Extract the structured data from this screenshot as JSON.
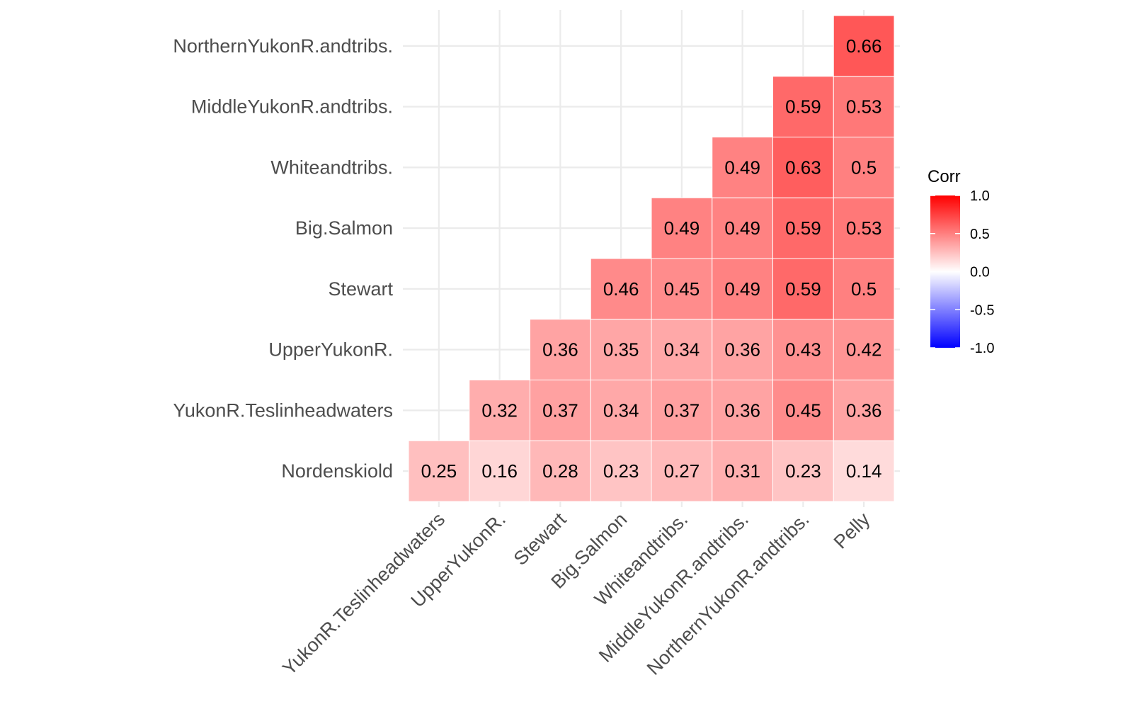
{
  "chart_data": {
    "type": "heatmap",
    "title": "",
    "xlabel": "",
    "ylabel": "",
    "x_categories": [
      "YukonR.Teslinheadwaters",
      "UpperYukonR.",
      "Stewart",
      "Big.Salmon",
      "Whiteandtribs.",
      "MiddleYukonR.andtribs.",
      "NorthernYukonR.andtribs.",
      "Pelly"
    ],
    "y_categories": [
      "Nordenskiold",
      "YukonR.Teslinheadwaters",
      "UpperYukonR.",
      "Stewart",
      "Big.Salmon",
      "Whiteandtribs.",
      "MiddleYukonR.andtribs.",
      "NorthernYukonR.andtribs."
    ],
    "matrix": [
      [
        0.25,
        0.16,
        0.28,
        0.23,
        0.27,
        0.31,
        0.23,
        0.14
      ],
      [
        null,
        0.32,
        0.37,
        0.34,
        0.37,
        0.36,
        0.45,
        0.36
      ],
      [
        null,
        null,
        0.36,
        0.35,
        0.34,
        0.36,
        0.43,
        0.42
      ],
      [
        null,
        null,
        null,
        0.46,
        0.45,
        0.49,
        0.59,
        0.5
      ],
      [
        null,
        null,
        null,
        null,
        0.49,
        0.49,
        0.59,
        0.53
      ],
      [
        null,
        null,
        null,
        null,
        null,
        0.49,
        0.63,
        0.5
      ],
      [
        null,
        null,
        null,
        null,
        null,
        null,
        0.59,
        0.53
      ],
      [
        null,
        null,
        null,
        null,
        null,
        null,
        null,
        0.66
      ]
    ],
    "value_range": [
      -1,
      1
    ],
    "grid": true,
    "legend": {
      "title": "Corr",
      "position": "right",
      "ticks": [
        "1.0",
        "0.5",
        "0.0",
        "-0.5",
        "-1.0"
      ],
      "low_color": "#0000ff",
      "mid_color": "#ffffff",
      "high_color": "#ff0000"
    }
  }
}
